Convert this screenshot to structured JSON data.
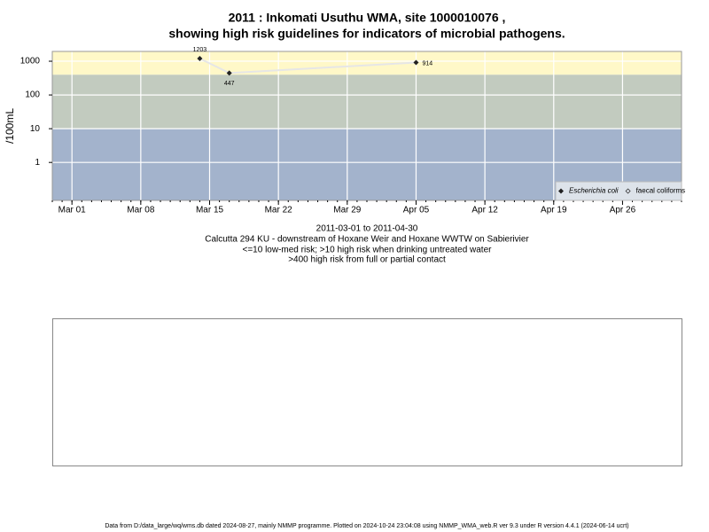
{
  "chart_data": {
    "type": "line",
    "title": [
      "2011 : Inkomati Usuthu WMA, site 1000010076 ,",
      "showing high risk guidelines for indicators of microbial pathogens."
    ],
    "ylabel": "/100mL",
    "xlabel": [
      "2011-03-01 to 2011-04-30",
      "Calcutta 294 KU - downstream of Hoxane Weir and Hoxane WWTW on Sabierivier",
      "<=10 low-med risk; >10 high risk when drinking untreated water",
      ">400 high risk from full or partial contact"
    ],
    "footer": "Data from D:/data_large/wq/wms.db dated 2024-08-27, mainly NMMP programme. Plotted on 2024-10-24 23:04:08 using NMMP_WMA_web.R ver 9.3 under R version 4.4.1 (2024-06-14 ucrt)",
    "x": [
      "2011-03-14",
      "2011-03-17",
      "2011-04-05"
    ],
    "series": [
      {
        "name": "Escherichia coli",
        "color": "#222222",
        "line_color": "#e6e6e6",
        "values": [
          1203,
          447,
          914
        ]
      },
      {
        "name": "faecal coliforms",
        "color": "#222222",
        "values": [
          null,
          null,
          null
        ]
      }
    ],
    "xlim": [
      "2011-02-27",
      "2011-05-02"
    ],
    "xticks": [
      {
        "value": "2011-03-01",
        "label": "Mar 01"
      },
      {
        "value": "2011-03-08",
        "label": "Mar 08"
      },
      {
        "value": "2011-03-15",
        "label": "Mar 15"
      },
      {
        "value": "2011-03-22",
        "label": "Mar 22"
      },
      {
        "value": "2011-03-29",
        "label": "Mar 29"
      },
      {
        "value": "2011-04-05",
        "label": "Apr 05"
      },
      {
        "value": "2011-04-12",
        "label": "Apr 12"
      },
      {
        "value": "2011-04-19",
        "label": "Apr 19"
      },
      {
        "value": "2011-04-26",
        "label": "Apr 26"
      }
    ],
    "ylim": [
      0.075,
      1950
    ],
    "yticks": [
      1,
      10,
      100,
      1000
    ],
    "log_y": true,
    "grid": true,
    "legend": "bottom-right",
    "bands": [
      {
        "from": 0.075,
        "to": 10,
        "color": "#a3b3cc"
      },
      {
        "from": 10,
        "to": 400,
        "color": "#c2cbbf"
      },
      {
        "from": 400,
        "to": 1950,
        "color": "#fff8c8"
      }
    ]
  }
}
